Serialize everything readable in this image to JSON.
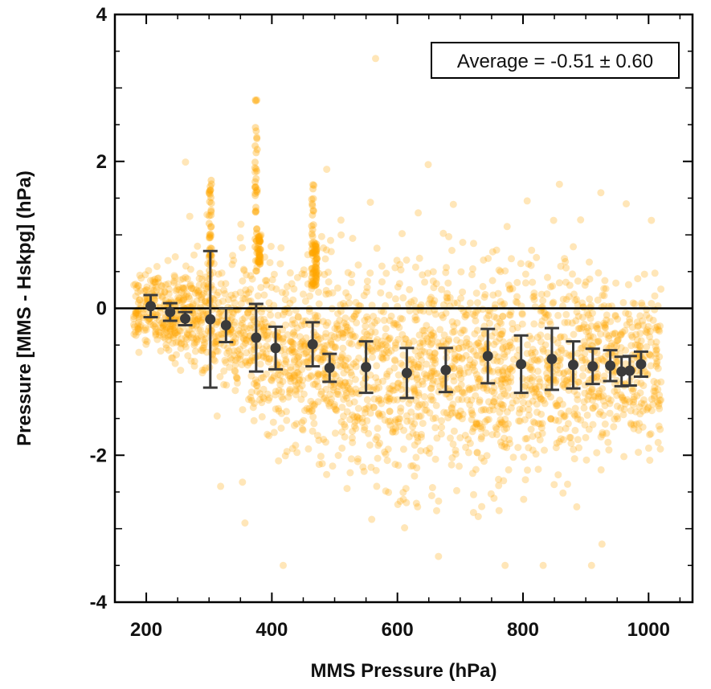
{
  "chart_data": {
    "type": "scatter",
    "title": "",
    "xlabel": "MMS Pressure (hPa)",
    "ylabel": "Pressure [MMS - Hskpg] (hPa)",
    "xlim": [
      150,
      1070
    ],
    "ylim": [
      -4,
      4
    ],
    "x_ticks": [
      200,
      400,
      600,
      800,
      1000
    ],
    "y_ticks": [
      -4,
      -2,
      0,
      2,
      4
    ],
    "zero_line": 0,
    "annotation": "Average = -0.51 ± 0.60",
    "annotation_position": "top-right",
    "grid": false,
    "colors": {
      "scatter": "#ffa500",
      "mean_markers": "#3a3a3a",
      "zero_line": "#000000",
      "axes": "#000000"
    },
    "scatter_cloud": {
      "x_range": [
        180,
        1020
      ],
      "center_trend": [
        [
          185,
          0.0
        ],
        [
          300,
          -0.15
        ],
        [
          400,
          -0.45
        ],
        [
          500,
          -0.75
        ],
        [
          600,
          -0.85
        ],
        [
          700,
          -0.8
        ],
        [
          800,
          -0.75
        ],
        [
          900,
          -0.8
        ],
        [
          1000,
          -0.75
        ]
      ],
      "spread_trend": [
        [
          185,
          0.2
        ],
        [
          300,
          0.4
        ],
        [
          400,
          0.55
        ],
        [
          500,
          0.65
        ],
        [
          600,
          0.75
        ],
        [
          700,
          0.7
        ],
        [
          800,
          0.7
        ],
        [
          900,
          0.65
        ],
        [
          1000,
          0.5
        ]
      ]
    },
    "series": [
      {
        "points": [
          {
            "x": 207,
            "y": 0.03,
            "err": 0.15
          },
          {
            "x": 238,
            "y": -0.05,
            "err": 0.12
          },
          {
            "x": 262,
            "y": -0.14,
            "err": 0.09
          },
          {
            "x": 302,
            "y": -0.15,
            "err": 0.93
          },
          {
            "x": 327,
            "y": -0.23,
            "err": 0.23
          },
          {
            "x": 375,
            "y": -0.4,
            "err": 0.46
          },
          {
            "x": 406,
            "y": -0.54,
            "err": 0.29
          },
          {
            "x": 465,
            "y": -0.49,
            "err": 0.3
          },
          {
            "x": 492,
            "y": -0.81,
            "err": 0.19
          },
          {
            "x": 550,
            "y": -0.8,
            "err": 0.35
          },
          {
            "x": 615,
            "y": -0.88,
            "err": 0.34
          },
          {
            "x": 677,
            "y": -0.84,
            "err": 0.3
          },
          {
            "x": 744,
            "y": -0.65,
            "err": 0.37
          },
          {
            "x": 797,
            "y": -0.76,
            "err": 0.39
          },
          {
            "x": 846,
            "y": -0.69,
            "err": 0.42
          },
          {
            "x": 880,
            "y": -0.77,
            "err": 0.32
          },
          {
            "x": 911,
            "y": -0.79,
            "err": 0.24
          },
          {
            "x": 939,
            "y": -0.78,
            "err": 0.21
          },
          {
            "x": 957,
            "y": -0.86,
            "err": 0.2
          },
          {
            "x": 970,
            "y": -0.85,
            "err": 0.2
          },
          {
            "x": 988,
            "y": -0.76,
            "err": 0.17
          }
        ]
      }
    ]
  }
}
